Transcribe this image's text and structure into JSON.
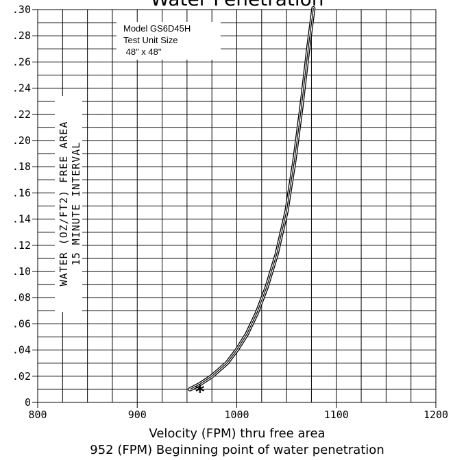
{
  "chart_data": {
    "type": "line",
    "title": "Water Penetration",
    "xlabel": "Velocity (FPM) thru free area",
    "subcaption": "952 (FPM) Beginning point of water penetration",
    "ylabel_line1": "WATER (OZ/FT2) FREE AREA",
    "ylabel_line2": "15 MINUTE INTERVAL",
    "xlim": [
      800,
      1200
    ],
    "ylim": [
      0,
      0.3
    ],
    "x_ticks": [
      800,
      900,
      1000,
      1100,
      1200
    ],
    "x_tick_labels": [
      "800",
      "900",
      "1000",
      "1100",
      "1200"
    ],
    "y_ticks": [
      0,
      0.02,
      0.04,
      0.06,
      0.08,
      0.1,
      0.12,
      0.14,
      0.16,
      0.18,
      0.2,
      0.22,
      0.24,
      0.26,
      0.28,
      0.3
    ],
    "y_tick_labels": [
      "0",
      ".02",
      ".04",
      ".06",
      ".08",
      ".10",
      ".12",
      ".14",
      ".16",
      ".18",
      ".20",
      ".22",
      ".24",
      ".26",
      ".28",
      ".30"
    ],
    "grid": true,
    "grid_minor_x_step": 25,
    "grid_minor_y_step": 0.01,
    "annotation": {
      "lines": [
        "Model GS6D45H",
        "Test Unit Size",
        " 48\" x 48\""
      ]
    },
    "marker": {
      "symbol": "*",
      "x": 963,
      "y": 0.009
    },
    "series": [
      {
        "x": [
          953,
          963,
          975,
          990,
          1000,
          1010,
          1020,
          1030,
          1040,
          1050,
          1058,
          1065,
          1072,
          1077
        ],
        "y": [
          0.01,
          0.014,
          0.02,
          0.03,
          0.04,
          0.052,
          0.068,
          0.088,
          0.113,
          0.146,
          0.185,
          0.226,
          0.272,
          0.305
        ]
      }
    ]
  }
}
